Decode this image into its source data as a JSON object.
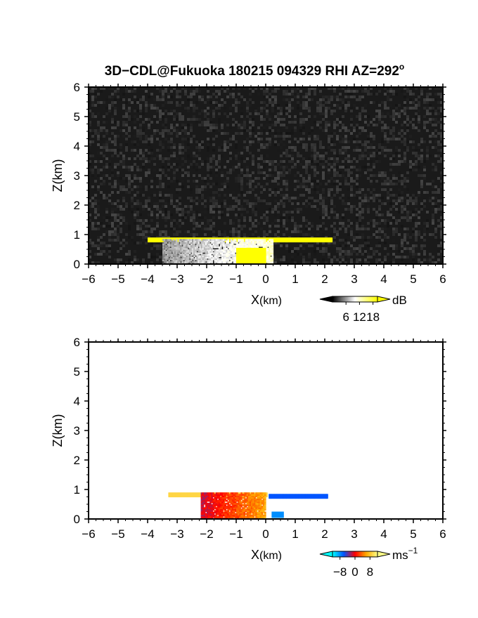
{
  "figure": {
    "title": "3D−CDL@Fukuoka 180215 094329 RHI AZ=292",
    "title_suffix": "o"
  },
  "chart_data": [
    {
      "type": "heatmap",
      "panel": "reflectivity",
      "xlabel_main": "X",
      "xlabel_unit": "(km)",
      "ylabel": "Z(km)",
      "xlim": [
        -6,
        6
      ],
      "ylim": [
        0,
        6
      ],
      "xticks": [
        -6,
        -5,
        -4,
        -3,
        -2,
        -1,
        0,
        1,
        2,
        3,
        4,
        5,
        6
      ],
      "yticks": [
        0,
        1,
        2,
        3,
        4,
        5,
        6
      ],
      "background": "noise",
      "colorbar": {
        "unit": "dB",
        "tick_labels": [
          "6",
          "12",
          "18"
        ],
        "tick_values": [
          6,
          12,
          18
        ],
        "range": [
          0,
          20
        ],
        "colors": [
          "#000000",
          "#ffffff",
          "#ffff00"
        ]
      },
      "features": [
        {
          "name": "layer-top",
          "x": [
            -4.0,
            2.2
          ],
          "z": [
            0.75,
            0.9
          ],
          "value_db": 20
        },
        {
          "name": "echo-core",
          "x": [
            -3.5,
            0.2
          ],
          "z": [
            0.0,
            0.85
          ],
          "value_db": 12
        },
        {
          "name": "near-surface",
          "x": [
            -1.0,
            0.0
          ],
          "z": [
            0.0,
            0.5
          ],
          "value_db": 20
        }
      ]
    },
    {
      "type": "heatmap",
      "panel": "doppler-velocity",
      "xlabel_main": "X",
      "xlabel_unit": "(km)",
      "ylabel": "Z(km)",
      "xlim": [
        -6,
        6
      ],
      "ylim": [
        0,
        6
      ],
      "xticks": [
        -6,
        -5,
        -4,
        -3,
        -2,
        -1,
        0,
        1,
        2,
        3,
        4,
        5,
        6
      ],
      "yticks": [
        0,
        1,
        2,
        3,
        4,
        5,
        6
      ],
      "background": "none",
      "colorbar": {
        "unit_main": "ms",
        "unit_exp": "−1",
        "tick_labels": [
          "−8",
          "0",
          "8"
        ],
        "tick_values": [
          -8,
          0,
          8
        ],
        "range": [
          -12,
          12
        ],
        "colors": [
          "#00ffff",
          "#0055ff",
          "#ff0000",
          "#ffaa00",
          "#ffff88"
        ]
      },
      "features": [
        {
          "name": "layer-top-west",
          "x": [
            -3.3,
            0.0
          ],
          "z": [
            0.75,
            0.9
          ],
          "value_ms": 9
        },
        {
          "name": "echo-core",
          "x": [
            -2.2,
            0.0
          ],
          "z": [
            0.0,
            0.9
          ],
          "value_ms": 6
        },
        {
          "name": "layer-top-east",
          "x": [
            0.1,
            2.1
          ],
          "z": [
            0.7,
            0.85
          ],
          "value_ms": -6
        },
        {
          "name": "near-radar",
          "x": [
            0.2,
            0.6
          ],
          "z": [
            0.05,
            0.25
          ],
          "value_ms": -8
        }
      ]
    }
  ]
}
